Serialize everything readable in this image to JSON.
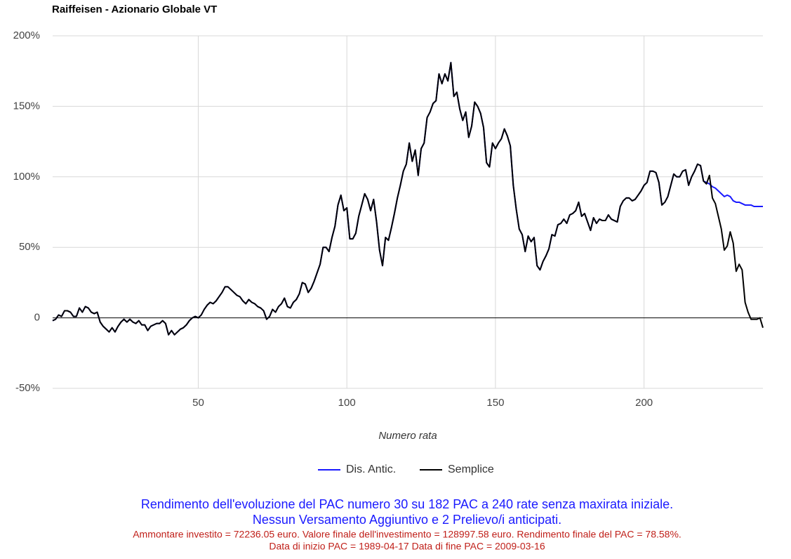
{
  "chart_data": {
    "type": "line",
    "title": "Raiffeisen - Azionario Globale VT",
    "x_label": "Numero rata",
    "x": [
      1,
      2,
      3,
      4,
      5,
      6,
      7,
      8,
      9,
      10,
      11,
      12,
      13,
      14,
      15,
      16,
      17,
      18,
      19,
      20,
      21,
      22,
      23,
      24,
      25,
      26,
      27,
      28,
      29,
      30,
      31,
      32,
      33,
      34,
      35,
      36,
      37,
      38,
      39,
      40,
      41,
      42,
      43,
      44,
      45,
      46,
      47,
      48,
      49,
      50,
      51,
      52,
      53,
      54,
      55,
      56,
      57,
      58,
      59,
      60,
      61,
      62,
      63,
      64,
      65,
      66,
      67,
      68,
      69,
      70,
      71,
      72,
      73,
      74,
      75,
      76,
      77,
      78,
      79,
      80,
      81,
      82,
      83,
      84,
      85,
      86,
      87,
      88,
      89,
      90,
      91,
      92,
      93,
      94,
      95,
      96,
      97,
      98,
      99,
      100,
      101,
      102,
      103,
      104,
      105,
      106,
      107,
      108,
      109,
      110,
      111,
      112,
      113,
      114,
      115,
      116,
      117,
      118,
      119,
      120,
      121,
      122,
      123,
      124,
      125,
      126,
      127,
      128,
      129,
      130,
      131,
      132,
      133,
      134,
      135,
      136,
      137,
      138,
      139,
      140,
      141,
      142,
      143,
      144,
      145,
      146,
      147,
      148,
      149,
      150,
      151,
      152,
      153,
      154,
      155,
      156,
      157,
      158,
      159,
      160,
      161,
      162,
      163,
      164,
      165,
      166,
      167,
      168,
      169,
      170,
      171,
      172,
      173,
      174,
      175,
      176,
      177,
      178,
      179,
      180,
      181,
      182,
      183,
      184,
      185,
      186,
      187,
      188,
      189,
      190,
      191,
      192,
      193,
      194,
      195,
      196,
      197,
      198,
      199,
      200,
      201,
      202,
      203,
      204,
      205,
      206,
      207,
      208,
      209,
      210,
      211,
      212,
      213,
      214,
      215,
      216,
      217,
      218,
      219,
      220,
      221,
      222,
      223,
      224,
      225,
      226,
      227,
      228,
      229,
      230,
      231,
      232,
      233,
      234,
      235,
      236,
      237,
      238,
      239,
      240
    ],
    "series": [
      {
        "name": "Dis. Antic.",
        "color": "#1a1aff",
        "values": [
          -2,
          -1,
          2,
          1,
          5,
          5,
          4,
          1,
          1,
          7,
          4,
          8,
          7,
          4,
          3,
          4,
          -3,
          -6,
          -8,
          -10,
          -7,
          -10,
          -6,
          -3,
          -1,
          -3,
          -1,
          -3,
          -4,
          -2,
          -5,
          -5,
          -9,
          -6,
          -5,
          -4,
          -4,
          -2,
          -4,
          -12,
          -9,
          -12,
          -10,
          -8,
          -7,
          -5,
          -2,
          0,
          1,
          0,
          2,
          6,
          9,
          11,
          10,
          12,
          15,
          18,
          22,
          22,
          20,
          18,
          16,
          15,
          12,
          10,
          13,
          11,
          10,
          8,
          7,
          5,
          -1,
          1,
          6,
          4,
          8,
          10,
          14,
          8,
          7,
          11,
          13,
          17,
          25,
          24,
          18,
          21,
          26,
          32,
          38,
          50,
          50,
          47,
          57,
          65,
          80,
          87,
          76,
          78,
          56,
          56,
          60,
          72,
          80,
          88,
          84,
          76,
          84,
          68,
          48,
          37,
          57,
          55,
          64,
          74,
          85,
          94,
          104,
          109,
          124,
          111,
          119,
          101,
          120,
          124,
          142,
          146,
          152,
          154,
          173,
          166,
          173,
          168,
          181,
          157,
          160,
          148,
          140,
          146,
          128,
          136,
          153,
          150,
          145,
          135,
          110,
          107,
          124,
          120,
          124,
          127,
          134,
          129,
          122,
          94,
          77,
          63,
          59,
          47,
          58,
          54,
          57,
          37,
          34,
          40,
          44,
          49,
          59,
          58,
          66,
          67,
          70,
          67,
          73,
          74,
          76,
          82,
          72,
          74,
          68,
          62,
          71,
          67,
          70,
          69,
          69,
          73,
          70,
          69,
          68,
          79,
          83,
          85,
          85,
          83,
          84,
          87,
          90,
          94,
          96,
          104,
          104,
          103,
          96,
          80,
          82,
          86,
          94,
          102,
          100,
          100,
          104,
          105,
          94,
          100,
          104,
          109,
          108,
          97,
          96,
          95,
          93,
          92,
          90,
          88,
          86,
          87,
          86,
          83,
          82,
          82,
          81,
          80,
          80,
          80,
          79,
          79,
          79,
          79
        ]
      },
      {
        "name": "Semplice",
        "color": "#000000",
        "values": [
          -2,
          -1,
          2,
          1,
          5,
          5,
          4,
          1,
          1,
          7,
          4,
          8,
          7,
          4,
          3,
          4,
          -3,
          -6,
          -8,
          -10,
          -7,
          -10,
          -6,
          -3,
          -1,
          -3,
          -1,
          -3,
          -4,
          -2,
          -5,
          -5,
          -9,
          -6,
          -5,
          -4,
          -4,
          -2,
          -4,
          -12,
          -9,
          -12,
          -10,
          -8,
          -7,
          -5,
          -2,
          0,
          1,
          0,
          2,
          6,
          9,
          11,
          10,
          12,
          15,
          18,
          22,
          22,
          20,
          18,
          16,
          15,
          12,
          10,
          13,
          11,
          10,
          8,
          7,
          5,
          -1,
          1,
          6,
          4,
          8,
          10,
          14,
          8,
          7,
          11,
          13,
          17,
          25,
          24,
          18,
          21,
          26,
          32,
          38,
          50,
          50,
          47,
          57,
          65,
          80,
          87,
          76,
          78,
          56,
          56,
          60,
          72,
          80,
          88,
          84,
          76,
          84,
          68,
          48,
          37,
          57,
          55,
          64,
          74,
          85,
          94,
          104,
          109,
          124,
          111,
          119,
          101,
          120,
          124,
          142,
          146,
          152,
          154,
          173,
          166,
          173,
          168,
          181,
          157,
          160,
          148,
          140,
          146,
          128,
          136,
          153,
          150,
          145,
          135,
          110,
          107,
          124,
          120,
          124,
          127,
          134,
          129,
          122,
          94,
          77,
          63,
          59,
          47,
          58,
          54,
          57,
          37,
          34,
          40,
          44,
          49,
          59,
          58,
          66,
          67,
          70,
          67,
          73,
          74,
          76,
          82,
          72,
          74,
          68,
          62,
          71,
          67,
          70,
          69,
          69,
          73,
          70,
          69,
          68,
          79,
          83,
          85,
          85,
          83,
          84,
          87,
          90,
          94,
          96,
          104,
          104,
          103,
          96,
          80,
          82,
          86,
          94,
          102,
          100,
          100,
          104,
          105,
          94,
          100,
          104,
          109,
          108,
          97,
          95,
          101,
          85,
          81,
          72,
          63,
          48,
          51,
          61,
          53,
          33,
          38,
          34,
          11,
          4,
          -1,
          -1,
          -1,
          0,
          -7
        ]
      }
    ],
    "xlim": [
      1,
      240
    ],
    "xticks": [
      50,
      100,
      150,
      200
    ],
    "ylim": [
      -50,
      200
    ],
    "yticks": [
      {
        "value": -50,
        "label": "-50%"
      },
      {
        "value": 0,
        "label": "0"
      },
      {
        "value": 50,
        "label": "50%"
      },
      {
        "value": 100,
        "label": "100%"
      },
      {
        "value": 150,
        "label": "150%"
      },
      {
        "value": 200,
        "label": "200%"
      }
    ],
    "grid": true,
    "zero_line": true,
    "captions": [
      "Rendimento dell'evoluzione del PAC numero 30 su 182 PAC a 240 rate senza maxirata iniziale.",
      "Nessun Versamento Aggiuntivo e 2 Prelievo/i anticipati.",
      "Ammontare investito = 72236.05 euro. Valore finale dell'investimento = 128997.58 euro. Rendimento finale del PAC = 78.58%.",
      "Data di inizio PAC = 1989-04-17 Data di fine PAC = 2009-03-16"
    ]
  }
}
